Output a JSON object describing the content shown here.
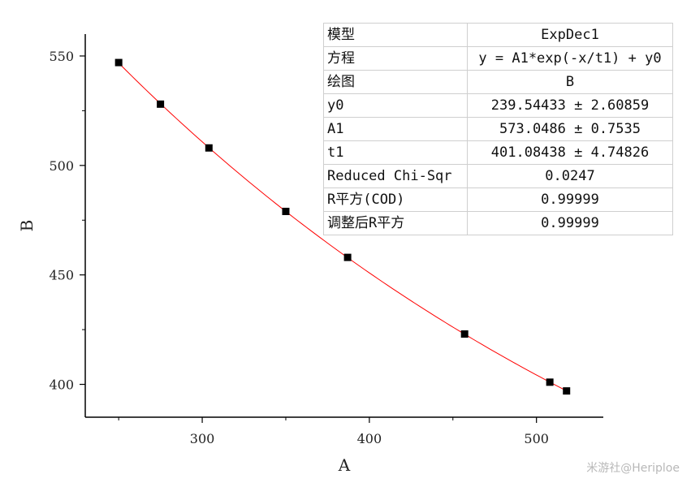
{
  "chart_data": {
    "type": "scatter",
    "xlabel": "A",
    "ylabel": "B",
    "xlim": [
      230,
      540
    ],
    "ylim": [
      385,
      560
    ],
    "xticks": [
      300,
      400,
      500
    ],
    "yticks": [
      400,
      450,
      500,
      550
    ],
    "grid": false,
    "points": [
      {
        "x": 250,
        "y": 547
      },
      {
        "x": 275,
        "y": 528
      },
      {
        "x": 304,
        "y": 508
      },
      {
        "x": 350,
        "y": 479
      },
      {
        "x": 387,
        "y": 458
      },
      {
        "x": 457,
        "y": 423
      },
      {
        "x": 508,
        "y": 401
      },
      {
        "x": 518,
        "y": 397
      }
    ],
    "fit": {
      "model": "ExpDec1",
      "equation": "y = A1*exp(-x/t1) + y0",
      "y0": 239.54433,
      "A1": 573.0486,
      "t1": 401.08438,
      "x_range": [
        250,
        518
      ]
    },
    "colors": {
      "points": "#000000",
      "fit_line": "#ff0000",
      "axes": "#000000"
    }
  },
  "table": {
    "rows": [
      {
        "key": "模型",
        "value": "ExpDec1"
      },
      {
        "key": "方程",
        "value": "y = A1*exp(-x/t1) + y0"
      },
      {
        "key": "绘图",
        "value": "B"
      },
      {
        "key": "y0",
        "value": "239.54433 ± 2.60859"
      },
      {
        "key": "A1",
        "value": "573.0486 ± 0.7535"
      },
      {
        "key": "t1",
        "value": "401.08438 ± 4.74826"
      },
      {
        "key": "Reduced Chi-Sqr",
        "value": "0.0247"
      },
      {
        "key": "R平方(COD)",
        "value": "0.99999"
      },
      {
        "key": "调整后R平方",
        "value": "0.99999"
      }
    ]
  },
  "watermark": "米游社@Heriploe"
}
